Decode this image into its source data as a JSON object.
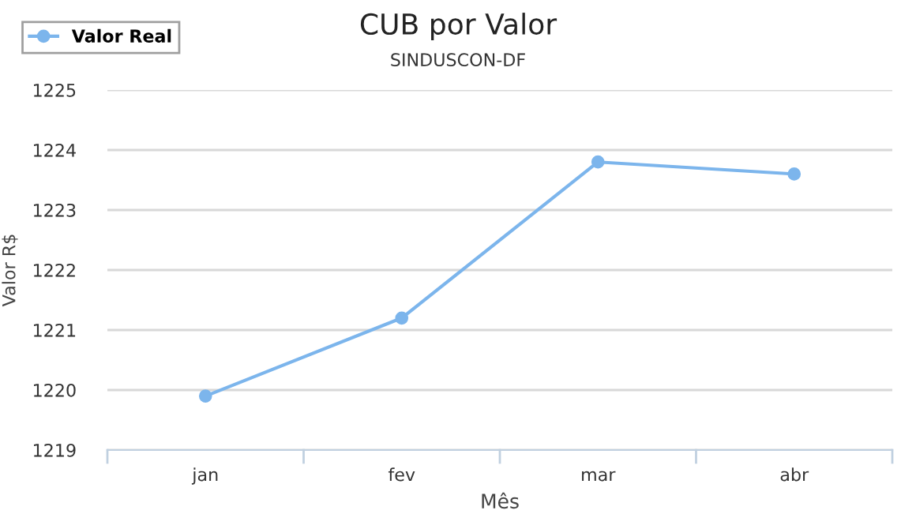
{
  "chart_data": {
    "type": "line",
    "title": "CUB por Valor",
    "subtitle": "SINDUSCON-DF",
    "xlabel": "Mês",
    "ylabel": "Valor R$",
    "categories": [
      "jan",
      "fev",
      "mar",
      "abr"
    ],
    "series": [
      {
        "name": "Valor Real",
        "color": "#7cb5ec",
        "values": [
          1219.9,
          1221.2,
          1223.8,
          1223.6
        ]
      }
    ],
    "ylim": [
      1219,
      1225
    ],
    "yticks": [
      1219,
      1220,
      1221,
      1222,
      1223,
      1224,
      1225
    ],
    "grid": "y",
    "legend": "top left",
    "marker": "circle",
    "line_style": "solid"
  }
}
